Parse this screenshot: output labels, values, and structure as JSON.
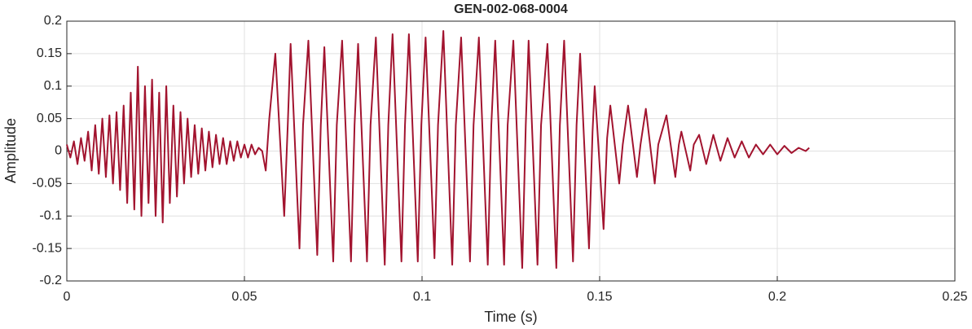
{
  "chart_data": {
    "type": "line",
    "title": "GEN-002-068-0004",
    "xlabel": "Time (s)",
    "ylabel": "Amplitude",
    "xlim": [
      0,
      0.25
    ],
    "xticks": [
      0,
      0.05,
      0.1,
      0.15,
      0.2,
      0.25
    ],
    "ylim": [
      -0.2,
      0.2
    ],
    "yticks": [
      -0.2,
      -0.15,
      -0.1,
      -0.05,
      0,
      0.05,
      0.1,
      0.15,
      0.2
    ],
    "grid": true,
    "series": [
      {
        "color": "#a2142f",
        "x": [
          0,
          0.001,
          0.002,
          0.003,
          0.004,
          0.005,
          0.006,
          0.007,
          0.008,
          0.009,
          0.01,
          0.011,
          0.012,
          0.013,
          0.014,
          0.015,
          0.016,
          0.017,
          0.018,
          0.019,
          0.02,
          0.021,
          0.022,
          0.023,
          0.024,
          0.025,
          0.026,
          0.027,
          0.028,
          0.029,
          0.03,
          0.031,
          0.032,
          0.033,
          0.034,
          0.035,
          0.036,
          0.037,
          0.038,
          0.039,
          0.04,
          0.041,
          0.042,
          0.043,
          0.044,
          0.045,
          0.046,
          0.047,
          0.048,
          0.049,
          0.05,
          0.051,
          0.052,
          0.053,
          0.054,
          0.055,
          0.056,
          0.057,
          0.0587,
          0.0612,
          0.0622,
          0.063,
          0.0655,
          0.0665,
          0.068,
          0.0705,
          0.0715,
          0.0725,
          0.075,
          0.076,
          0.0775,
          0.08,
          0.081,
          0.082,
          0.0845,
          0.0855,
          0.087,
          0.0895,
          0.0905,
          0.0917,
          0.0942,
          0.0952,
          0.0963,
          0.0988,
          0.0998,
          0.101,
          0.1035,
          0.1045,
          0.106,
          0.1085,
          0.1095,
          0.111,
          0.1135,
          0.1145,
          0.116,
          0.1185,
          0.1195,
          0.1206,
          0.1231,
          0.1241,
          0.1257,
          0.1282,
          0.1292,
          0.13,
          0.1325,
          0.1335,
          0.1353,
          0.1378,
          0.1388,
          0.14,
          0.1425,
          0.1435,
          0.1445,
          0.147,
          0.148,
          0.1486,
          0.1511,
          0.1521,
          0.153,
          0.1555,
          0.1565,
          0.158,
          0.1605,
          0.1615,
          0.163,
          0.1655,
          0.1665,
          0.1688,
          0.1713,
          0.1723,
          0.173,
          0.1755,
          0.1765,
          0.178,
          0.18,
          0.182,
          0.184,
          0.186,
          0.188,
          0.19,
          0.192,
          0.194,
          0.196,
          0.198,
          0.2,
          0.202,
          0.204,
          0.206,
          0.208,
          0.209
        ],
        "values": [
          0.01,
          -0.01,
          0.015,
          -0.02,
          0.02,
          -0.015,
          0.03,
          -0.03,
          0.04,
          -0.035,
          0.05,
          -0.04,
          0.055,
          -0.05,
          0.06,
          -0.06,
          0.07,
          -0.08,
          0.09,
          -0.09,
          0.13,
          -0.1,
          0.1,
          -0.08,
          0.11,
          -0.1,
          0.09,
          -0.11,
          0.1,
          -0.08,
          0.07,
          -0.07,
          0.06,
          -0.05,
          0.05,
          -0.04,
          0.04,
          -0.035,
          0.035,
          -0.03,
          0.03,
          -0.025,
          0.025,
          -0.02,
          0.02,
          -0.02,
          0.015,
          -0.015,
          0.015,
          -0.01,
          0.01,
          -0.01,
          0.01,
          -0.005,
          0.005,
          0,
          -0.03,
          0.05,
          0.15,
          -0.1,
          0.04,
          0.165,
          -0.15,
          0.04,
          0.17,
          -0.16,
          0.04,
          0.16,
          -0.17,
          0.04,
          0.17,
          -0.17,
          0.04,
          0.165,
          -0.17,
          0.04,
          0.175,
          -0.175,
          0.04,
          0.18,
          -0.17,
          0.04,
          0.18,
          -0.17,
          0.04,
          0.175,
          -0.165,
          0.04,
          0.185,
          -0.175,
          0.04,
          0.175,
          -0.17,
          0.04,
          0.175,
          -0.175,
          0.04,
          0.17,
          -0.175,
          0.04,
          0.17,
          -0.18,
          0.04,
          0.17,
          -0.175,
          0.04,
          0.165,
          -0.18,
          0.04,
          0.17,
          -0.17,
          0.04,
          0.15,
          -0.15,
          0.03,
          0.1,
          -0.12,
          0.02,
          0.07,
          -0.05,
          0.01,
          0.07,
          -0.04,
          0.01,
          0.065,
          -0.05,
          0.01,
          0.055,
          -0.04,
          0.01,
          0.03,
          -0.03,
          0.01,
          0.025,
          -0.02,
          0.025,
          -0.015,
          0.02,
          -0.01,
          0.015,
          -0.01,
          0.01,
          -0.005,
          0.01,
          -0.005,
          0.008,
          -0.003,
          0.005,
          0,
          0.005
        ]
      }
    ]
  }
}
